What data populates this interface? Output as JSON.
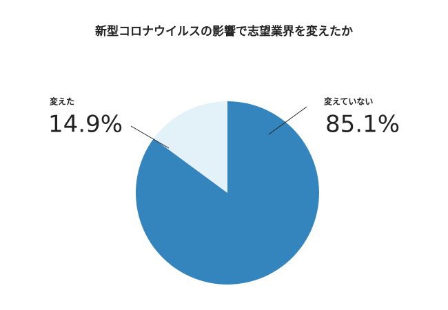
{
  "chart_data": {
    "type": "pie",
    "title": "新型コロナウイルスの影響で志望業界を変えたか",
    "categories": [
      "変えていない",
      "変えた"
    ],
    "values": [
      85.1,
      14.9
    ],
    "value_labels": [
      "85.1%",
      "14.9%"
    ],
    "colors": [
      "#3484bd",
      "#e3f1f9"
    ]
  }
}
